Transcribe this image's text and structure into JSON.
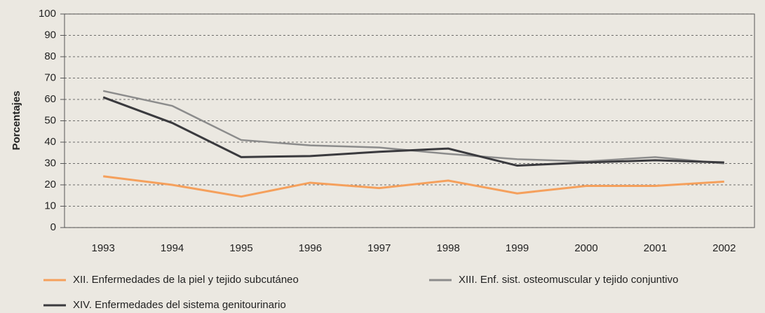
{
  "chart_data": {
    "type": "line",
    "y_label": "Porcentajes",
    "categories": [
      "1993",
      "1994",
      "1995",
      "1996",
      "1997",
      "1998",
      "1999",
      "2000",
      "2001",
      "2002"
    ],
    "series": [
      {
        "name": "XII. Enfermedades de la piel y tejido subcutáneo",
        "color": "#f5a05c",
        "values": [
          24,
          20,
          14.5,
          21,
          18.5,
          22,
          16,
          19.5,
          19.5,
          21.5
        ]
      },
      {
        "name": "XIII. Enf. sist. osteomuscular y tejido conjuntivo",
        "color": "#8c8c8c",
        "values": [
          64,
          57,
          41,
          38.5,
          37.5,
          34.5,
          32,
          31,
          33,
          30
        ]
      },
      {
        "name": "XIV. Enfermedades del sistema genitourinario",
        "color": "#3a3a3e",
        "values": [
          61,
          49,
          33,
          33.5,
          35.5,
          37,
          29,
          30.5,
          31.5,
          30.5
        ]
      }
    ],
    "ylim": [
      0,
      100
    ],
    "yticks": [
      0,
      10,
      20,
      30,
      40,
      50,
      60,
      70,
      80,
      90,
      100
    ],
    "grid": true
  }
}
